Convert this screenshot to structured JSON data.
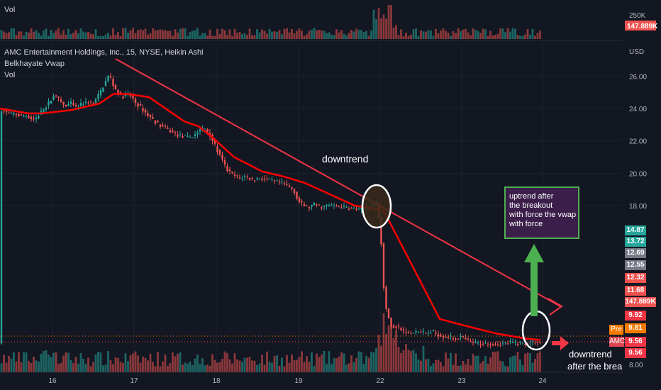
{
  "header": {
    "symbol_line": "AMC Entertainment Holdings, Inc., 15, NYSE, Heikin Ashi",
    "indicator_line": "Belkhayate Vwap",
    "vol_label": "Vol",
    "top_vol_label": "Vol"
  },
  "chart_data": {
    "type": "candlestick",
    "price_axis": {
      "unit": "USD",
      "ticks": [
        26.0,
        24.0,
        22.0,
        20.0,
        18.0,
        8.0
      ],
      "tick_labels": [
        "26.00",
        "24.00",
        "22.00",
        "20.00",
        "18.00",
        "8.00"
      ],
      "ylim": [
        8.0,
        27.0
      ]
    },
    "time_axis": {
      "tick_labels": [
        "16",
        "17",
        "18",
        "19",
        "22",
        "23",
        "24"
      ]
    },
    "volume_pane": {
      "ticks": [
        "250K"
      ],
      "current_volume": "147.889K"
    },
    "price_path": [
      [
        0,
        24.0
      ],
      [
        8,
        23.75
      ],
      [
        15,
        23.6
      ],
      [
        22,
        23.7
      ],
      [
        30,
        23.5
      ],
      [
        38,
        23.6
      ],
      [
        46,
        23.3
      ],
      [
        53,
        23.5
      ],
      [
        60,
        23.9
      ],
      [
        68,
        24.3
      ],
      [
        76,
        24.8
      ],
      [
        84,
        24.5
      ],
      [
        92,
        24.1
      ],
      [
        100,
        24.3
      ],
      [
        108,
        24.0
      ],
      [
        116,
        24.3
      ],
      [
        124,
        24.4
      ],
      [
        132,
        24.3
      ],
      [
        140,
        24.9
      ],
      [
        148,
        25.6
      ],
      [
        154,
        26.1
      ],
      [
        160,
        25.4
      ],
      [
        166,
        25.0
      ],
      [
        172,
        24.7
      ],
      [
        180,
        24.9
      ],
      [
        186,
        24.7
      ],
      [
        192,
        24.3
      ],
      [
        200,
        24.0
      ],
      [
        208,
        23.6
      ],
      [
        216,
        23.3
      ],
      [
        224,
        23.0
      ],
      [
        232,
        22.8
      ],
      [
        240,
        22.6
      ],
      [
        248,
        22.4
      ],
      [
        256,
        22.3
      ],
      [
        264,
        22.2
      ],
      [
        272,
        22.3
      ],
      [
        280,
        22.6
      ],
      [
        288,
        22.8
      ],
      [
        296,
        22.4
      ],
      [
        304,
        21.6
      ],
      [
        312,
        20.9
      ],
      [
        320,
        20.2
      ],
      [
        328,
        19.9
      ],
      [
        336,
        19.7
      ],
      [
        346,
        19.8
      ],
      [
        356,
        19.6
      ],
      [
        366,
        19.7
      ],
      [
        376,
        19.6
      ],
      [
        386,
        19.5
      ],
      [
        396,
        19.4
      ],
      [
        406,
        19.2
      ],
      [
        414,
        19.0
      ],
      [
        420,
        18.3
      ],
      [
        428,
        18.0
      ],
      [
        436,
        17.9
      ],
      [
        444,
        18.1
      ],
      [
        452,
        17.9
      ],
      [
        460,
        18.0
      ],
      [
        468,
        18.0
      ],
      [
        476,
        17.95
      ],
      [
        484,
        17.9
      ],
      [
        492,
        17.85
      ],
      [
        500,
        17.8
      ],
      [
        508,
        17.7
      ],
      [
        516,
        17.9
      ],
      [
        524,
        17.95
      ],
      [
        532,
        18.2
      ],
      [
        538,
        15.5
      ],
      [
        542,
        12.2
      ],
      [
        546,
        11.4
      ],
      [
        552,
        10.6
      ],
      [
        560,
        10.5
      ],
      [
        570,
        10.2
      ],
      [
        580,
        10.1
      ],
      [
        590,
        10.2
      ],
      [
        600,
        10.1
      ],
      [
        610,
        10.2
      ],
      [
        620,
        10.0
      ],
      [
        630,
        9.9
      ],
      [
        640,
        9.8
      ],
      [
        650,
        9.9
      ],
      [
        660,
        9.6
      ],
      [
        670,
        9.5
      ],
      [
        680,
        9.45
      ],
      [
        690,
        9.5
      ],
      [
        700,
        9.45
      ],
      [
        710,
        9.5
      ],
      [
        720,
        9.55
      ],
      [
        730,
        9.5
      ],
      [
        740,
        9.5
      ],
      [
        750,
        9.6
      ],
      [
        762,
        9.55
      ]
    ],
    "vwap_path": [
      [
        0,
        24.0
      ],
      [
        40,
        23.7
      ],
      [
        60,
        23.7
      ],
      [
        100,
        23.9
      ],
      [
        140,
        24.3
      ],
      [
        160,
        24.9
      ],
      [
        180,
        24.9
      ],
      [
        210,
        24.7
      ],
      [
        230,
        24.1
      ],
      [
        260,
        23.2
      ],
      [
        280,
        22.9
      ],
      [
        300,
        22.2
      ],
      [
        330,
        21.0
      ],
      [
        370,
        20.1
      ],
      [
        400,
        19.8
      ],
      [
        430,
        19.4
      ],
      [
        470,
        18.6
      ],
      [
        500,
        18.0
      ],
      [
        532,
        17.8
      ],
      [
        542,
        17.6
      ],
      [
        580,
        14.4
      ],
      [
        620,
        11.0
      ],
      [
        650,
        10.65
      ],
      [
        700,
        10.1
      ],
      [
        740,
        9.8
      ],
      [
        762,
        9.7
      ]
    ],
    "annotations": {
      "label_downtrend_top": "downtrend",
      "label_downtrend_bottom": "downtrend",
      "label_after_break": "after the break",
      "box_text": [
        "uptrend after",
        "the breakout",
        "with force the vwap",
        "with force"
      ]
    },
    "price_scale_badges": [
      {
        "label": "14.87",
        "color": "#26a69a"
      },
      {
        "label": "13.72",
        "color": "#26a69a"
      },
      {
        "label": "12.69",
        "color": "#787b86"
      },
      {
        "label": "12.55",
        "color": "#787b86"
      },
      {
        "label": "12.32",
        "color": "#ef5350"
      },
      {
        "label": "11.68",
        "color": "#ef5350"
      },
      {
        "label": "147.889K",
        "color": "#ef5350"
      },
      {
        "label": "9.92",
        "color": "#f23645"
      },
      {
        "label": "9.81",
        "color": "#f57c00"
      },
      {
        "label": "9.56",
        "color": "#f23645"
      },
      {
        "label": "9.56",
        "color": "#f23645"
      }
    ],
    "pre_tag": "Pre",
    "amc_tag": "AMC",
    "colors": {
      "up": "#26a69a",
      "down": "#ef5350",
      "vwap": "#ff0000",
      "trendline": "#f23645",
      "annotation_box_bg": "#3b1f4a",
      "annotation_box_border": "#4caf50"
    }
  }
}
